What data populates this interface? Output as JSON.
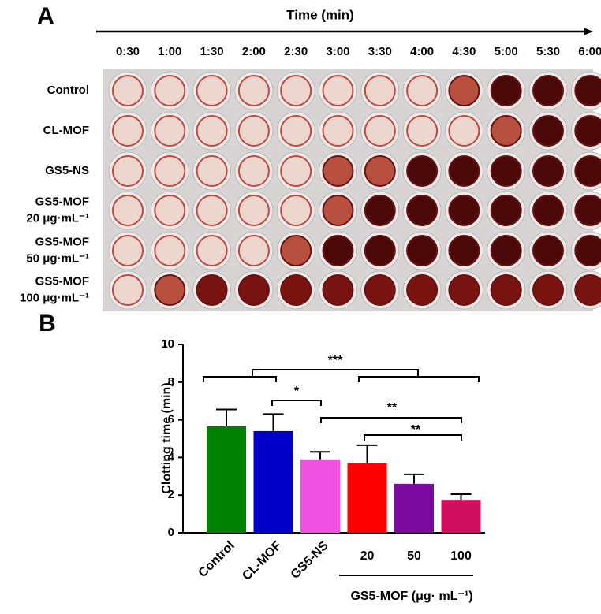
{
  "panel_a": {
    "label": "A",
    "axis_title": "Time (min)",
    "times": [
      "0:30",
      "1:00",
      "1:30",
      "2:00",
      "2:30",
      "3:00",
      "3:30",
      "4:00",
      "4:30",
      "5:00",
      "5:30",
      "6:00"
    ],
    "rows": [
      [
        "Control"
      ],
      [
        "CL-MOF"
      ],
      [
        "GS5-NS"
      ],
      [
        "GS5-MOF",
        "20 μg·mL⁻¹"
      ],
      [
        "GS5-MOF",
        "50 μg·mL⁻¹"
      ],
      [
        "GS5-MOF",
        "100 μg·mL⁻¹"
      ]
    ]
  },
  "panel_b": {
    "label": "B"
  },
  "chart_data": {
    "type": "bar",
    "y_label": "Clotting time (min)",
    "x_label": "GS5-MOF (μg· mL⁻¹)",
    "categories": [
      "Control",
      "CL-MOF",
      "GS5-NS",
      "20",
      "50",
      "100"
    ],
    "values": [
      5.65,
      5.4,
      3.9,
      3.7,
      2.6,
      1.75
    ],
    "errors": [
      0.9,
      0.9,
      0.4,
      0.95,
      0.5,
      0.3
    ],
    "colors": [
      "#008000",
      "#0000c8",
      "#f050e0",
      "#ff0000",
      "#7a0aa0",
      "#d0105f"
    ],
    "ylim": [
      0,
      10
    ],
    "yticks": [
      0,
      2,
      4,
      6,
      8,
      10
    ],
    "annotations": [
      "***",
      "*",
      "**",
      "**"
    ]
  }
}
